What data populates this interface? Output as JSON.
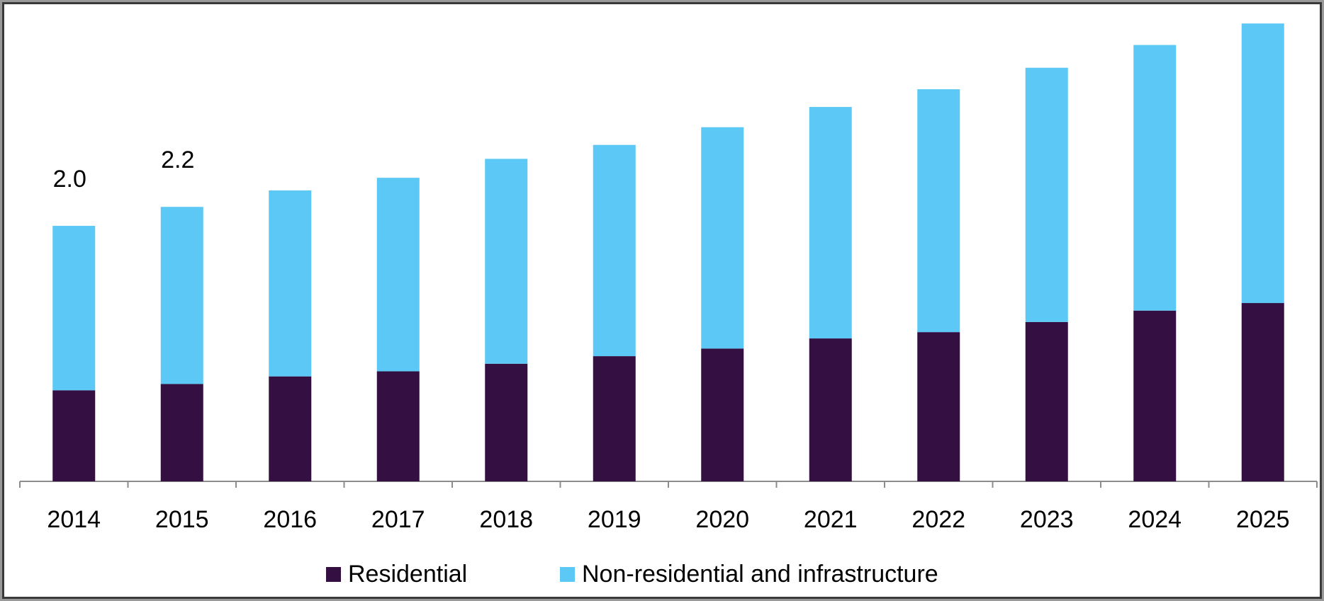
{
  "chart_data": {
    "type": "stacked_bar",
    "categories": [
      "2014",
      "2015",
      "2016",
      "2017",
      "2018",
      "2019",
      "2020",
      "2021",
      "2022",
      "2023",
      "2024",
      "2025"
    ],
    "series": [
      {
        "name": "Residential",
        "color": "#330f42",
        "values": [
          0.72,
          0.77,
          0.83,
          0.87,
          0.93,
          0.99,
          1.05,
          1.13,
          1.18,
          1.26,
          1.35,
          1.41
        ]
      },
      {
        "name": "Non-residential and infrastructure",
        "color": "#5bc8f5",
        "values": [
          1.3,
          1.4,
          1.47,
          1.53,
          1.62,
          1.67,
          1.75,
          1.83,
          1.92,
          2.01,
          2.1,
          2.21
        ]
      }
    ],
    "total_labels": [
      "2.0",
      "2.2",
      null,
      null,
      null,
      null,
      null,
      null,
      null,
      null,
      null,
      null
    ],
    "ylim": [
      0,
      3.8
    ],
    "legend": "bottom"
  }
}
